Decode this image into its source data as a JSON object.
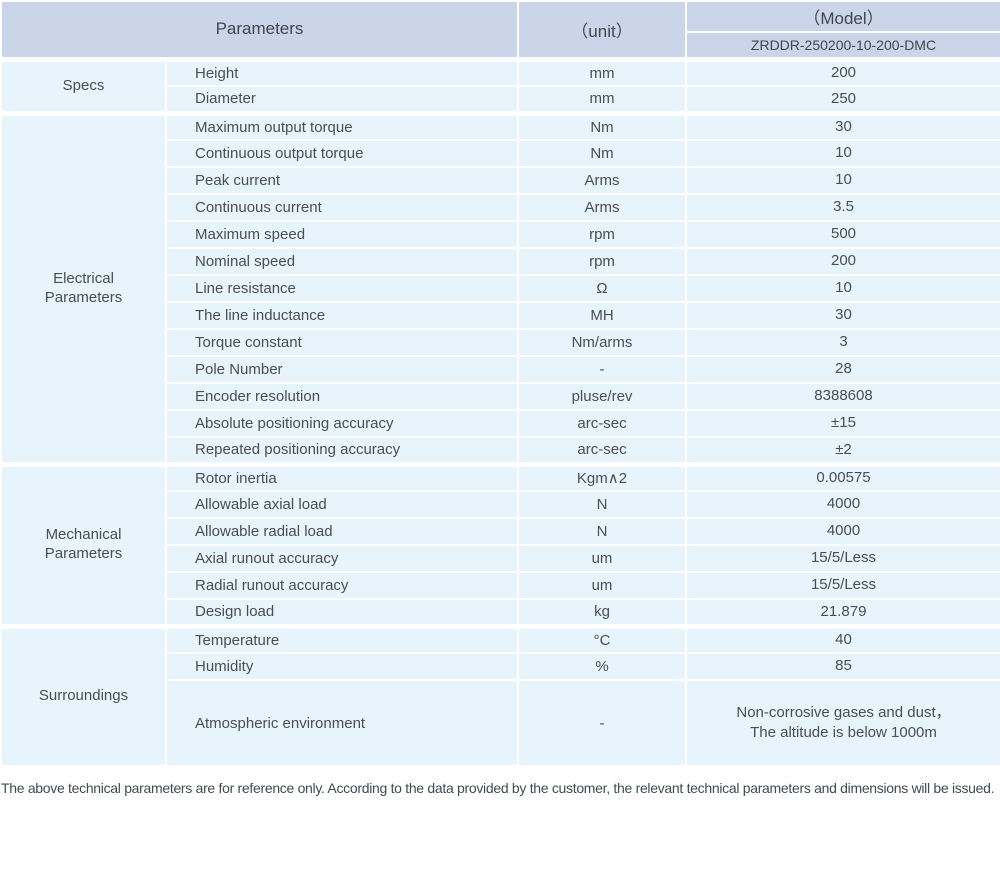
{
  "header": {
    "parameters_label": "Parameters",
    "unit_label": "（unit）",
    "model_label": "（Model）",
    "model_value": "ZRDDR-250200-10-200-DMC"
  },
  "table": {
    "groups": [
      {
        "label": "Specs",
        "rows": [
          {
            "parameter": "Height",
            "unit": "mm",
            "value": "200"
          },
          {
            "parameter": "Diameter",
            "unit": "mm",
            "value": "250"
          }
        ]
      },
      {
        "label": "Electrical Parameters",
        "rows": [
          {
            "parameter": "Maximum output torque",
            "unit": "Nm",
            "value": "30"
          },
          {
            "parameter": "Continuous output torque",
            "unit": "Nm",
            "value": "10"
          },
          {
            "parameter": "Peak current",
            "unit": "Arms",
            "value": "10"
          },
          {
            "parameter": "Continuous current",
            "unit": "Arms",
            "value": "3.5"
          },
          {
            "parameter": "Maximum speed",
            "unit": "rpm",
            "value": "500"
          },
          {
            "parameter": "Nominal speed",
            "unit": "rpm",
            "value": "200"
          },
          {
            "parameter": "Line resistance",
            "unit": "Ω",
            "value": "10"
          },
          {
            "parameter": "The line inductance",
            "unit": "MH",
            "value": "30"
          },
          {
            "parameter": "Torque constant",
            "unit": "Nm/arms",
            "value": "3"
          },
          {
            "parameter": "Pole Number",
            "unit": "-",
            "value": "28"
          },
          {
            "parameter": "Encoder resolution",
            "unit": "pluse/rev",
            "value": "8388608"
          },
          {
            "parameter": "Absolute positioning accuracy",
            "unit": "arc-sec",
            "value": "±15"
          },
          {
            "parameter": "Repeated positioning accuracy",
            "unit": "arc-sec",
            "value": "±2"
          }
        ]
      },
      {
        "label": "Mechanical Parameters",
        "rows": [
          {
            "parameter": "Rotor inertia",
            "unit": "Kgm∧2",
            "value": "0.00575"
          },
          {
            "parameter": "Allowable axial load",
            "unit": "N",
            "value": "4000"
          },
          {
            "parameter": "Allowable radial load",
            "unit": "N",
            "value": "4000"
          },
          {
            "parameter": "Axial runout accuracy",
            "unit": "um",
            "value": "15/5/Less"
          },
          {
            "parameter": "Radial runout accuracy",
            "unit": "um",
            "value": "15/5/Less"
          },
          {
            "parameter": "Design load",
            "unit": "kg",
            "value": "21.879"
          }
        ]
      },
      {
        "label": "Surroundings",
        "rows": [
          {
            "parameter": "Temperature",
            "unit": "°C",
            "value": "40"
          },
          {
            "parameter": "Humidity",
            "unit": "%",
            "value": "85"
          },
          {
            "parameter": "Atmospheric environment",
            "unit": "-",
            "value": [
              "Non-corrosive gases and dust，",
              "The altitude is below 1000m"
            ],
            "tall": true
          }
        ]
      }
    ]
  },
  "footer": {
    "note": "The above technical parameters are for reference only. According to the data provided by the customer, the relevant technical parameters and dimensions will be issued."
  },
  "colors": {
    "header_bg": "#cad5ea",
    "row_bg": "#e7f4fc",
    "grid_line": "#ffffff",
    "text": "#4a4e53",
    "footer_text": "#3f4c50"
  }
}
